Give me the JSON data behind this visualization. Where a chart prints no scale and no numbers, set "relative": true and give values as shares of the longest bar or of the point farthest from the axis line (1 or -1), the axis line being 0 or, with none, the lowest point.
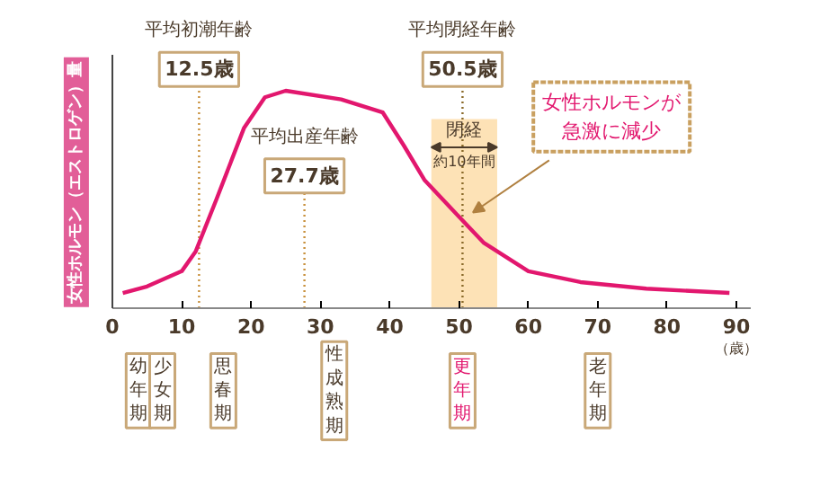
{
  "chart_data": {
    "type": "line",
    "relative": true,
    "ylabel": "女性ホルモン（エストロゲン）量",
    "xlabel": "（歳）",
    "x": [
      1.5,
      5,
      10,
      12,
      15,
      19,
      22,
      25,
      33,
      39,
      42,
      45,
      50,
      53.6,
      60,
      67.5,
      77,
      89
    ],
    "series": [
      {
        "color": "#e2176e",
        "values": [
          0.07,
          0.1,
          0.17,
          0.26,
          0.5,
          0.83,
          0.97,
          1.0,
          0.96,
          0.9,
          0.75,
          0.59,
          0.42,
          0.3,
          0.17,
          0.12,
          0.09,
          0.07
        ]
      }
    ],
    "xlim": [
      0,
      92
    ],
    "xticks": [
      0,
      10,
      20,
      30,
      40,
      50,
      60,
      70,
      80,
      90
    ],
    "tick_labels": "x",
    "grid": false,
    "line_style": "solid",
    "marker": "none",
    "ref_lines": [
      {
        "axis": "x",
        "value": 12.5,
        "label": "12.5歳",
        "color": "#c8903c",
        "line_style": "dotted"
      },
      {
        "axis": "x",
        "value": 27.7,
        "label": "27.7歳",
        "color": "#c8903c",
        "line_style": "dotted"
      },
      {
        "axis": "x",
        "value": 50.5,
        "label": "50.5歳",
        "color": "#8a6a2a",
        "line_style": "dotted"
      }
    ],
    "bands": [
      {
        "axis": "x",
        "from": 46,
        "to": 55.5,
        "label": "閉経",
        "color": "#fde2b6"
      }
    ],
    "annotations": [
      "平均初潮年齢",
      "平均出産年齢",
      "平均閉経年齢",
      "約10年間",
      "女性ホルモンが急激に減少",
      "幼年期",
      "少女期",
      "思春期",
      "性成熟期",
      "更年期",
      "老年期"
    ]
  }
}
